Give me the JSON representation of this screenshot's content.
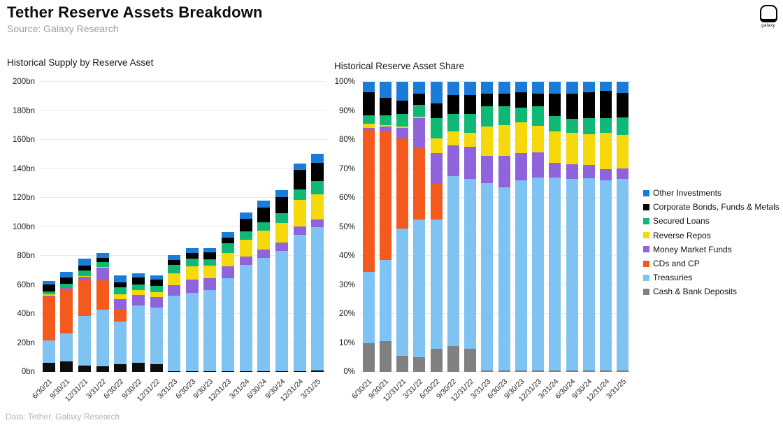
{
  "header": {
    "title": "Tether Reserve Assets Breakdown",
    "source": "Source: Galaxy Research",
    "logo_text": "galaxy"
  },
  "footer": {
    "note": "Data: Tether, Galaxy Research"
  },
  "legend": {
    "position": "right",
    "items": [
      {
        "label": "Other Investments",
        "color": "#1A7CD9"
      },
      {
        "label": "Corporate Bonds, Funds & Metals",
        "color": "#000000"
      },
      {
        "label": "Secured Loans",
        "color": "#10B875"
      },
      {
        "label": "Reverse Repos",
        "color": "#F5D90A"
      },
      {
        "label": "Money Market Funds",
        "color": "#8F63DB"
      },
      {
        "label": "CDs and CP",
        "color": "#F4591D"
      },
      {
        "label": "Treasuries",
        "color": "#7EC3F1"
      },
      {
        "label": "Cash & Bank Deposits",
        "color": "#808080"
      }
    ]
  },
  "chart_data": [
    {
      "type": "bar",
      "stacked": true,
      "title": "Historical Supply by Reserve Asset",
      "unit": "bn",
      "ylim": [
        0,
        200
      ],
      "grid": true,
      "ytick_values": [
        0,
        20,
        40,
        60,
        80,
        100,
        120,
        140,
        160,
        180,
        200
      ],
      "ytick_labels": [
        "0bn",
        "20bn",
        "40bn",
        "60bn",
        "80bn",
        "100bn",
        "120bn",
        "140bn",
        "160bn",
        "180bn",
        "200bn"
      ],
      "categories": [
        "6/30/21",
        "9/30/21",
        "12/31/21",
        "3/31/22",
        "6/30/22",
        "9/30/22",
        "12/31/22",
        "3/31/23",
        "6/30/23",
        "9/30/23",
        "12/31/23",
        "3/31/24",
        "6/30/24",
        "9/30/24",
        "12/31/24",
        "3/31/25"
      ],
      "series": [
        {
          "name": "Cash & Bank Deposits",
          "color": "#0D0D0D",
          "values": [
            6.3,
            7.2,
            4.3,
            4.1,
            5.3,
            6.1,
            5.3,
            0.4,
            0.4,
            0.4,
            0.5,
            0.6,
            0.6,
            0.6,
            0.7,
            0.8
          ]
        },
        {
          "name": "Treasuries",
          "color": "#7EC3F1",
          "values": [
            15.3,
            19.3,
            34.5,
            39.0,
            29.6,
            39.8,
            38.9,
            51.9,
            53.9,
            56.0,
            64.1,
            73.2,
            77.9,
            82.9,
            94.0,
            99.0
          ]
        },
        {
          "name": "CDs and CP",
          "color": "#F4591D",
          "values": [
            30.6,
            30.7,
            24.3,
            20.1,
            8.3,
            0,
            0,
            0,
            0,
            0,
            0,
            0,
            0,
            0,
            0,
            0
          ]
        },
        {
          "name": "Money Market Funds",
          "color": "#8F63DB",
          "values": [
            0.3,
            1.0,
            2.7,
            8.6,
            7.0,
            7.1,
            7.3,
            7.6,
            9.4,
            8.1,
            8.4,
            5.5,
            5.9,
            5.8,
            5.5,
            5.4
          ]
        },
        {
          "name": "Reverse Repos",
          "color": "#F5D90A",
          "values": [
            0.9,
            0.3,
            0.4,
            0.4,
            3.3,
            3.4,
            3.3,
            8.1,
            9.0,
            9.0,
            8.9,
            12.0,
            13.0,
            13.3,
            18.2,
            17.3
          ]
        },
        {
          "name": "Secured Loans",
          "color": "#10B875",
          "values": [
            1.9,
            2.4,
            3.5,
            3.3,
            4.7,
            4.1,
            4.3,
            5.6,
            5.6,
            4.3,
            6.6,
            5.7,
            5.7,
            7.0,
            7.2,
            9.0
          ]
        },
        {
          "name": "Corporate Bonds, Funds & Metals",
          "color": "#000000",
          "values": [
            5.0,
            4.1,
            3.5,
            3.3,
            3.3,
            4.4,
            4.3,
            3.6,
            3.8,
            4.7,
            4.2,
            8.6,
            10.3,
            10.9,
            13.6,
            12.8
          ]
        },
        {
          "name": "Other Investments",
          "color": "#1A7CD9",
          "values": [
            2.2,
            3.8,
            5.1,
            3.3,
            5.0,
            3.1,
            3.0,
            3.2,
            3.4,
            3.0,
            3.9,
            4.5,
            4.7,
            4.6,
            4.3,
            5.9
          ]
        }
      ]
    },
    {
      "type": "bar",
      "stacked": true,
      "title": "Historical Reserve Asset Share",
      "unit": "%",
      "ylim": [
        0,
        100
      ],
      "grid": true,
      "ytick_values": [
        0,
        10,
        20,
        30,
        40,
        50,
        60,
        70,
        80,
        90,
        100
      ],
      "ytick_labels": [
        "0%",
        "10%",
        "20%",
        "30%",
        "40%",
        "50%",
        "60%",
        "70%",
        "80%",
        "90%",
        "100%"
      ],
      "categories": [
        "6/30/21",
        "9/30/21",
        "12/31/21",
        "3/31/22",
        "6/30/22",
        "9/30/22",
        "12/31/22",
        "3/31/23",
        "6/30/23",
        "9/30/23",
        "12/31/23",
        "3/31/24",
        "6/30/24",
        "9/30/24",
        "12/31/24",
        "3/31/25"
      ],
      "series": [
        {
          "name": "Cash & Bank Deposits",
          "color": "#808080",
          "values": [
            10,
            10.5,
            5.5,
            5,
            8,
            9,
            8,
            0.5,
            0.5,
            0.5,
            0.5,
            0.5,
            0.5,
            0.5,
            0.5,
            0.5
          ]
        },
        {
          "name": "Treasuries",
          "color": "#7EC3F1",
          "values": [
            24.5,
            28,
            44,
            47.5,
            44.5,
            58.5,
            58.5,
            64.5,
            63,
            65.5,
            66.4,
            66.5,
            66,
            66.3,
            65.5,
            66
          ]
        },
        {
          "name": "CDs and CP",
          "color": "#F4591D",
          "values": [
            49,
            44.5,
            31,
            24.5,
            12.5,
            0,
            0,
            0,
            0,
            0,
            0,
            0,
            0,
            0,
            0,
            0
          ]
        },
        {
          "name": "Money Market Funds",
          "color": "#8F63DB",
          "values": [
            0.5,
            1.5,
            3.5,
            10.5,
            10.5,
            10.5,
            11,
            9.5,
            11,
            9.5,
            8.7,
            5,
            5,
            4.6,
            3.8,
            3.6
          ]
        },
        {
          "name": "Reverse Repos",
          "color": "#F5D90A",
          "values": [
            1.5,
            0.5,
            0.5,
            0.5,
            5,
            5,
            5,
            10,
            10.5,
            10.5,
            9.2,
            10.9,
            11,
            10.6,
            12.7,
            11.5
          ]
        },
        {
          "name": "Secured Loans",
          "color": "#10B875",
          "values": [
            3,
            3.5,
            4.5,
            4,
            7,
            6,
            6.5,
            7,
            6.5,
            5,
            6.8,
            5.2,
            4.8,
            5.6,
            5,
            6
          ]
        },
        {
          "name": "Corporate Bonds, Funds & Metals",
          "color": "#000000",
          "values": [
            8,
            6,
            4.5,
            4,
            5,
            6.5,
            6.5,
            4.5,
            4.5,
            5.5,
            4.4,
            7.8,
            8.7,
            8.7,
            9.5,
            8.5
          ]
        },
        {
          "name": "Other Investments",
          "color": "#1A7CD9",
          "values": [
            3.5,
            5.5,
            6.5,
            4,
            7.5,
            4.5,
            4.5,
            4,
            4,
            3.5,
            4,
            4.1,
            4,
            3.7,
            3,
            3.9
          ]
        }
      ]
    }
  ]
}
